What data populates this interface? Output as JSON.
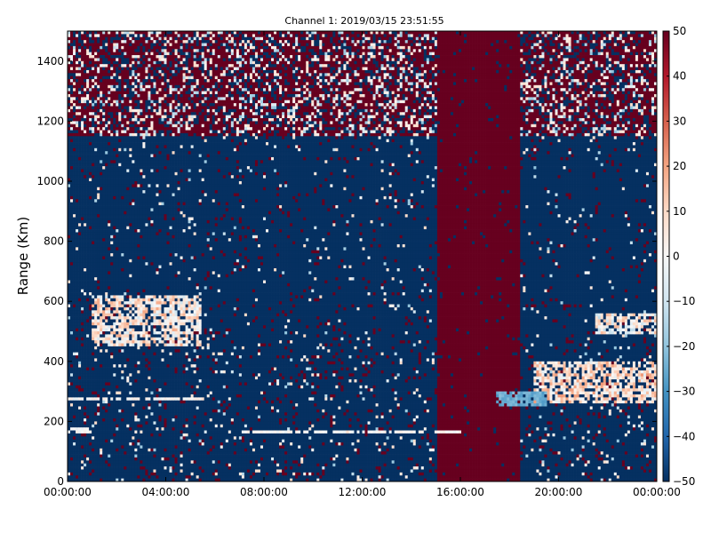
{
  "chart_data": {
    "type": "heatmap",
    "title": "Channel 1: 2019/03/15 23:51:55",
    "xlabel": "",
    "ylabel": "Range (Km)",
    "x_ticks": [
      "00:00:00",
      "04:00:00",
      "08:00:00",
      "12:00:00",
      "16:00:00",
      "20:00:00",
      "00:00:00"
    ],
    "x_tick_hours": [
      0,
      4,
      8,
      12,
      16,
      20,
      24
    ],
    "xlim_hours": [
      0,
      24
    ],
    "y_ticks": [
      "0",
      "200",
      "400",
      "600",
      "800",
      "1000",
      "1200",
      "1400"
    ],
    "y_tick_values": [
      0,
      200,
      400,
      600,
      800,
      1000,
      1200,
      1400
    ],
    "ylim": [
      0,
      1500
    ],
    "colorbar": {
      "ticks": [
        "50",
        "40",
        "30",
        "20",
        "10",
        "0",
        "−10",
        "−20",
        "−30",
        "−40",
        "−50"
      ],
      "tick_values": [
        50,
        40,
        30,
        20,
        10,
        0,
        -10,
        -20,
        -30,
        -40,
        -50
      ],
      "range": [
        -50,
        50
      ],
      "colormap": "RdBu_r",
      "low_color": "#053061",
      "mid_color": "#f7f7f7",
      "high_color": "#67001f"
    },
    "features": [
      {
        "kind": "band",
        "label": "",
        "hours": [
          15.1,
          18.4
        ],
        "range_km": [
          0,
          1500
        ],
        "value": 50
      },
      {
        "kind": "echo",
        "label": "",
        "hours": [
          1.0,
          5.5
        ],
        "range_km": [
          450,
          620
        ],
        "value": 5
      },
      {
        "kind": "echo",
        "label": "",
        "hours": [
          19.0,
          24.0
        ],
        "range_km": [
          260,
          400
        ],
        "value": 8
      },
      {
        "kind": "echo",
        "label": "",
        "hours": [
          21.5,
          24.0
        ],
        "range_km": [
          490,
          560
        ],
        "value": 2
      },
      {
        "kind": "line",
        "label": "",
        "hours": [
          0.0,
          5.5
        ],
        "range_km": [
          270,
          280
        ],
        "value": 0
      },
      {
        "kind": "line",
        "label": "",
        "hours": [
          7.0,
          16.0
        ],
        "range_km": [
          160,
          165
        ],
        "value": 0
      },
      {
        "kind": "line",
        "label": "",
        "hours": [
          0.0,
          1.0
        ],
        "range_km": [
          160,
          175
        ],
        "value": 0
      },
      {
        "kind": "line",
        "label": "",
        "hours": [
          17.5,
          19.5
        ],
        "range_km": [
          250,
          300
        ],
        "value": -25
      }
    ],
    "grid": false,
    "legend": "colorbar-right"
  }
}
